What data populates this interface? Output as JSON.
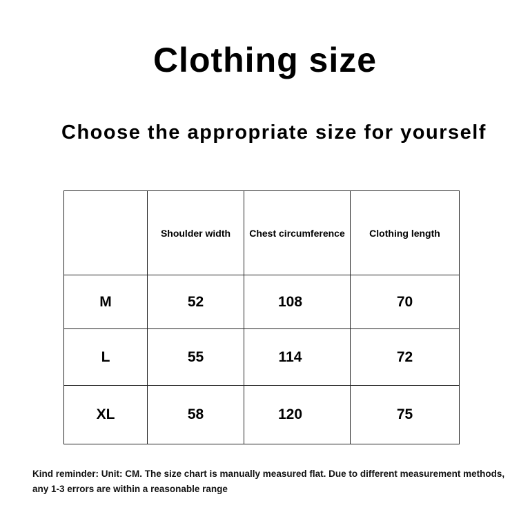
{
  "title": "Clothing size",
  "subtitle": "Choose the appropriate size for yourself",
  "table": {
    "headers": [
      "",
      "Shoulder width",
      "Chest circumference",
      "Clothing length"
    ],
    "rows": [
      {
        "size": "M",
        "shoulder": "52",
        "chest": "108",
        "length": "70"
      },
      {
        "size": "L",
        "shoulder": "55",
        "chest": "114",
        "length": "72"
      },
      {
        "size": "XL",
        "shoulder": "58",
        "chest": "120",
        "length": "75"
      }
    ]
  },
  "note": "Kind reminder: Unit: CM. The size chart is manually measured flat. Due to different measurement methods, any 1-3 errors are within a reasonable range"
}
